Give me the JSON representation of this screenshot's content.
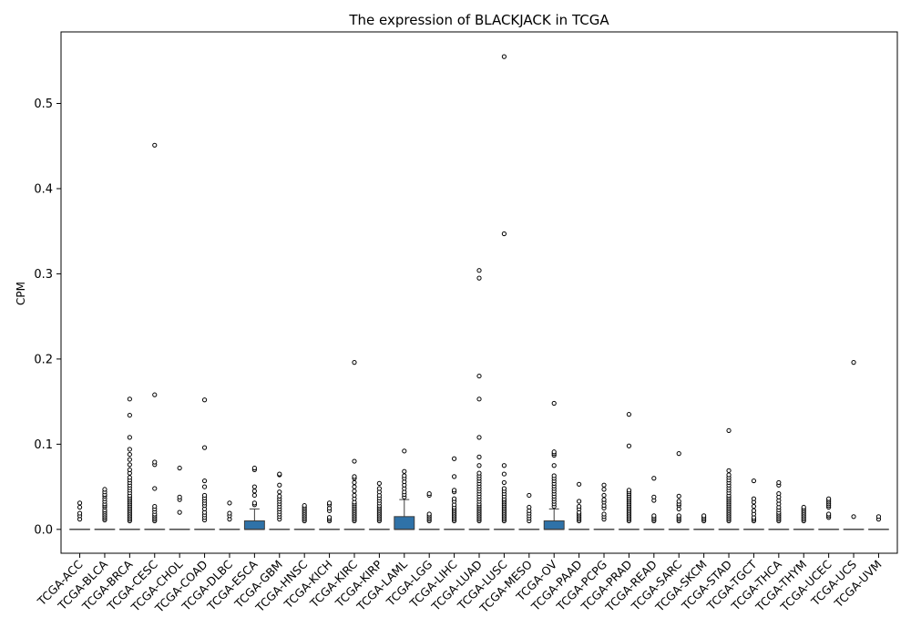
{
  "chart_data": {
    "type": "box",
    "title": "The expression of BLACKJACK in TCGA",
    "xlabel": "",
    "ylabel": "CPM",
    "ylim": [
      -0.028,
      0.584
    ],
    "yticks": [
      0.0,
      0.1,
      0.2,
      0.3,
      0.4,
      0.5
    ],
    "ytick_labels": [
      "0.0",
      "0.1",
      "0.2",
      "0.3",
      "0.4",
      "0.5"
    ],
    "grid": false,
    "box_color": "#2f72a8",
    "categories": [
      "TCGA-ACC",
      "TCGA-BLCA",
      "TCGA-BRCA",
      "TCGA-CESC",
      "TCGA-CHOL",
      "TCGA-COAD",
      "TCGA-DLBC",
      "TCGA-ESCA",
      "TCGA-GBM",
      "TCGA-HNSC",
      "TCGA-KICH",
      "TCGA-KIRC",
      "TCGA-KIRP",
      "TCGA-LAML",
      "TCGA-LGG",
      "TCGA-LIHC",
      "TCGA-LUAD",
      "TCGA-LUSC",
      "TCGA-MESO",
      "TCGA-OV",
      "TCGA-PAAD",
      "TCGA-PCPG",
      "TCGA-PRAD",
      "TCGA-READ",
      "TCGA-SARC",
      "TCGA-SKCM",
      "TCGA-STAD",
      "TCGA-TGCT",
      "TCGA-THCA",
      "TCGA-THYM",
      "TCGA-UCEC",
      "TCGA-UCS",
      "TCGA-UVM"
    ],
    "boxes": [
      {
        "category": "TCGA-ACC",
        "q1": 0,
        "median": 0,
        "q3": 0,
        "whisker_low": 0,
        "whisker_high": 0,
        "outliers": [
          0.012,
          0.016,
          0.019,
          0.026,
          0.031
        ]
      },
      {
        "category": "TCGA-BLCA",
        "q1": 0,
        "median": 0,
        "q3": 0,
        "whisker_low": 0,
        "whisker_high": 0,
        "outliers": [
          0.011,
          0.013,
          0.015,
          0.017,
          0.019,
          0.021,
          0.023,
          0.026,
          0.028,
          0.03,
          0.033,
          0.036,
          0.039,
          0.041,
          0.044,
          0.047
        ]
      },
      {
        "category": "TCGA-BRCA",
        "q1": 0,
        "median": 0,
        "q3": 0,
        "whisker_low": 0,
        "whisker_high": 0,
        "outliers": [
          0.01,
          0.012,
          0.014,
          0.016,
          0.018,
          0.02,
          0.022,
          0.024,
          0.026,
          0.028,
          0.03,
          0.032,
          0.034,
          0.036,
          0.038,
          0.04,
          0.043,
          0.046,
          0.049,
          0.052,
          0.055,
          0.058,
          0.061,
          0.066,
          0.07,
          0.076,
          0.082,
          0.088,
          0.094,
          0.108,
          0.134,
          0.153
        ]
      },
      {
        "category": "TCGA-CESC",
        "q1": 0,
        "median": 0,
        "q3": 0,
        "whisker_low": 0,
        "whisker_high": 0,
        "outliers": [
          0.01,
          0.012,
          0.014,
          0.016,
          0.018,
          0.021,
          0.024,
          0.027,
          0.048,
          0.076,
          0.079,
          0.158,
          0.451
        ]
      },
      {
        "category": "TCGA-CHOL",
        "q1": 0,
        "median": 0,
        "q3": 0,
        "whisker_low": 0,
        "whisker_high": 0,
        "outliers": [
          0.02,
          0.035,
          0.038,
          0.072
        ]
      },
      {
        "category": "TCGA-COAD",
        "q1": 0,
        "median": 0,
        "q3": 0,
        "whisker_low": 0,
        "whisker_high": 0,
        "outliers": [
          0.011,
          0.014,
          0.017,
          0.02,
          0.024,
          0.028,
          0.031,
          0.034,
          0.037,
          0.04,
          0.05,
          0.057,
          0.096,
          0.152
        ]
      },
      {
        "category": "TCGA-DLBC",
        "q1": 0,
        "median": 0,
        "q3": 0,
        "whisker_low": 0,
        "whisker_high": 0,
        "outliers": [
          0.012,
          0.016,
          0.019,
          0.031
        ]
      },
      {
        "category": "TCGA-ESCA",
        "q1": 0,
        "median": 0,
        "q3": 0.01,
        "whisker_low": 0,
        "whisker_high": 0.024,
        "outliers": [
          0.029,
          0.031,
          0.04,
          0.045,
          0.05,
          0.07,
          0.072
        ]
      },
      {
        "category": "TCGA-GBM",
        "q1": 0,
        "median": 0,
        "q3": 0,
        "whisker_low": 0,
        "whisker_high": 0,
        "outliers": [
          0.012,
          0.015,
          0.018,
          0.021,
          0.024,
          0.027,
          0.03,
          0.033,
          0.036,
          0.039,
          0.044,
          0.052,
          0.064,
          0.065
        ]
      },
      {
        "category": "TCGA-HNSC",
        "q1": 0,
        "median": 0,
        "q3": 0,
        "whisker_low": 0,
        "whisker_high": 0,
        "outliers": [
          0.01,
          0.012,
          0.014,
          0.016,
          0.018,
          0.02,
          0.022,
          0.024,
          0.026,
          0.028
        ]
      },
      {
        "category": "TCGA-KICH",
        "q1": 0,
        "median": 0,
        "q3": 0,
        "whisker_low": 0,
        "whisker_high": 0,
        "outliers": [
          0.01,
          0.012,
          0.014,
          0.022,
          0.025,
          0.029,
          0.031
        ]
      },
      {
        "category": "TCGA-KIRC",
        "q1": 0,
        "median": 0,
        "q3": 0,
        "whisker_low": 0,
        "whisker_high": 0,
        "outliers": [
          0.01,
          0.012,
          0.014,
          0.016,
          0.018,
          0.02,
          0.022,
          0.024,
          0.026,
          0.028,
          0.03,
          0.032,
          0.036,
          0.04,
          0.045,
          0.05,
          0.055,
          0.06,
          0.062,
          0.08,
          0.196
        ]
      },
      {
        "category": "TCGA-KIRP",
        "q1": 0,
        "median": 0,
        "q3": 0,
        "whisker_low": 0,
        "whisker_high": 0,
        "outliers": [
          0.01,
          0.012,
          0.014,
          0.016,
          0.018,
          0.02,
          0.022,
          0.024,
          0.026,
          0.028,
          0.031,
          0.034,
          0.037,
          0.04,
          0.044,
          0.048,
          0.054
        ]
      },
      {
        "category": "TCGA-LAML",
        "q1": 0,
        "median": 0,
        "q3": 0.015,
        "whisker_low": 0,
        "whisker_high": 0.035,
        "outliers": [
          0.038,
          0.041,
          0.044,
          0.048,
          0.052,
          0.056,
          0.06,
          0.063,
          0.068,
          0.092
        ]
      },
      {
        "category": "TCGA-LGG",
        "q1": 0,
        "median": 0,
        "q3": 0,
        "whisker_low": 0,
        "whisker_high": 0,
        "outliers": [
          0.01,
          0.012,
          0.014,
          0.016,
          0.018,
          0.04,
          0.042
        ]
      },
      {
        "category": "TCGA-LIHC",
        "q1": 0,
        "median": 0,
        "q3": 0,
        "whisker_low": 0,
        "whisker_high": 0,
        "outliers": [
          0.01,
          0.012,
          0.014,
          0.016,
          0.018,
          0.02,
          0.022,
          0.024,
          0.026,
          0.029,
          0.033,
          0.036,
          0.044,
          0.046,
          0.062,
          0.083
        ]
      },
      {
        "category": "TCGA-LUAD",
        "q1": 0,
        "median": 0,
        "q3": 0,
        "whisker_low": 0,
        "whisker_high": 0,
        "outliers": [
          0.01,
          0.012,
          0.014,
          0.016,
          0.018,
          0.02,
          0.022,
          0.024,
          0.026,
          0.028,
          0.03,
          0.033,
          0.036,
          0.039,
          0.042,
          0.045,
          0.048,
          0.051,
          0.054,
          0.057,
          0.06,
          0.063,
          0.066,
          0.075,
          0.085,
          0.108,
          0.153,
          0.18,
          0.295,
          0.304
        ]
      },
      {
        "category": "TCGA-LUSC",
        "q1": 0,
        "median": 0,
        "q3": 0,
        "whisker_low": 0,
        "whisker_high": 0,
        "outliers": [
          0.01,
          0.012,
          0.014,
          0.016,
          0.018,
          0.02,
          0.022,
          0.024,
          0.026,
          0.028,
          0.03,
          0.032,
          0.034,
          0.036,
          0.039,
          0.042,
          0.045,
          0.048,
          0.055,
          0.065,
          0.075,
          0.347,
          0.555
        ]
      },
      {
        "category": "TCGA-MESO",
        "q1": 0,
        "median": 0,
        "q3": 0,
        "whisker_low": 0,
        "whisker_high": 0,
        "outliers": [
          0.01,
          0.013,
          0.016,
          0.019,
          0.022,
          0.026,
          0.04
        ]
      },
      {
        "category": "TCGA-OV",
        "q1": 0,
        "median": 0,
        "q3": 0.01,
        "whisker_low": 0,
        "whisker_high": 0.024,
        "outliers": [
          0.027,
          0.03,
          0.033,
          0.036,
          0.039,
          0.042,
          0.045,
          0.048,
          0.051,
          0.054,
          0.057,
          0.06,
          0.063,
          0.075,
          0.087,
          0.089,
          0.091,
          0.148
        ]
      },
      {
        "category": "TCGA-PAAD",
        "q1": 0,
        "median": 0,
        "q3": 0,
        "whisker_low": 0,
        "whisker_high": 0,
        "outliers": [
          0.01,
          0.012,
          0.014,
          0.016,
          0.018,
          0.02,
          0.024,
          0.027,
          0.033,
          0.053
        ]
      },
      {
        "category": "TCGA-PCPG",
        "q1": 0,
        "median": 0,
        "q3": 0,
        "whisker_low": 0,
        "whisker_high": 0,
        "outliers": [
          0.012,
          0.015,
          0.018,
          0.025,
          0.028,
          0.032,
          0.035,
          0.04,
          0.047,
          0.052
        ]
      },
      {
        "category": "TCGA-PRAD",
        "q1": 0,
        "median": 0,
        "q3": 0,
        "whisker_low": 0,
        "whisker_high": 0,
        "outliers": [
          0.01,
          0.012,
          0.014,
          0.016,
          0.018,
          0.02,
          0.022,
          0.024,
          0.026,
          0.028,
          0.03,
          0.032,
          0.034,
          0.036,
          0.038,
          0.04,
          0.042,
          0.044,
          0.046,
          0.098,
          0.135
        ]
      },
      {
        "category": "TCGA-READ",
        "q1": 0,
        "median": 0,
        "q3": 0,
        "whisker_low": 0,
        "whisker_high": 0,
        "outliers": [
          0.01,
          0.012,
          0.014,
          0.016,
          0.034,
          0.038,
          0.06
        ]
      },
      {
        "category": "TCGA-SARC",
        "q1": 0,
        "median": 0,
        "q3": 0,
        "whisker_low": 0,
        "whisker_high": 0,
        "outliers": [
          0.01,
          0.012,
          0.014,
          0.016,
          0.024,
          0.028,
          0.03,
          0.033,
          0.039,
          0.089
        ]
      },
      {
        "category": "TCGA-SKCM",
        "q1": 0,
        "median": 0,
        "q3": 0,
        "whisker_low": 0,
        "whisker_high": 0,
        "outliers": [
          0.01,
          0.012,
          0.014,
          0.016
        ]
      },
      {
        "category": "TCGA-STAD",
        "q1": 0,
        "median": 0,
        "q3": 0,
        "whisker_low": 0,
        "whisker_high": 0,
        "outliers": [
          0.01,
          0.012,
          0.014,
          0.016,
          0.018,
          0.02,
          0.022,
          0.024,
          0.026,
          0.028,
          0.03,
          0.032,
          0.034,
          0.036,
          0.038,
          0.04,
          0.043,
          0.046,
          0.049,
          0.052,
          0.055,
          0.058,
          0.061,
          0.064,
          0.069,
          0.116
        ]
      },
      {
        "category": "TCGA-TGCT",
        "q1": 0,
        "median": 0,
        "q3": 0,
        "whisker_low": 0,
        "whisker_high": 0,
        "outliers": [
          0.01,
          0.012,
          0.014,
          0.018,
          0.022,
          0.027,
          0.032,
          0.036,
          0.057
        ]
      },
      {
        "category": "TCGA-THCA",
        "q1": 0,
        "median": 0,
        "q3": 0,
        "whisker_low": 0,
        "whisker_high": 0,
        "outliers": [
          0.01,
          0.012,
          0.014,
          0.016,
          0.018,
          0.02,
          0.023,
          0.026,
          0.03,
          0.034,
          0.038,
          0.042,
          0.052,
          0.055
        ]
      },
      {
        "category": "TCGA-THYM",
        "q1": 0,
        "median": 0,
        "q3": 0,
        "whisker_low": 0,
        "whisker_high": 0,
        "outliers": [
          0.01,
          0.012,
          0.014,
          0.016,
          0.018,
          0.02,
          0.022,
          0.024,
          0.026
        ]
      },
      {
        "category": "TCGA-UCEC",
        "q1": 0,
        "median": 0,
        "q3": 0,
        "whisker_low": 0,
        "whisker_high": 0,
        "outliers": [
          0.014,
          0.016,
          0.018,
          0.026,
          0.028,
          0.03,
          0.032,
          0.034,
          0.036
        ]
      },
      {
        "category": "TCGA-UCS",
        "q1": 0,
        "median": 0,
        "q3": 0,
        "whisker_low": 0,
        "whisker_high": 0,
        "outliers": [
          0.015,
          0.196
        ]
      },
      {
        "category": "TCGA-UVM",
        "q1": 0,
        "median": 0,
        "q3": 0,
        "whisker_low": 0,
        "whisker_high": 0,
        "outliers": [
          0.012,
          0.015
        ]
      }
    ]
  }
}
